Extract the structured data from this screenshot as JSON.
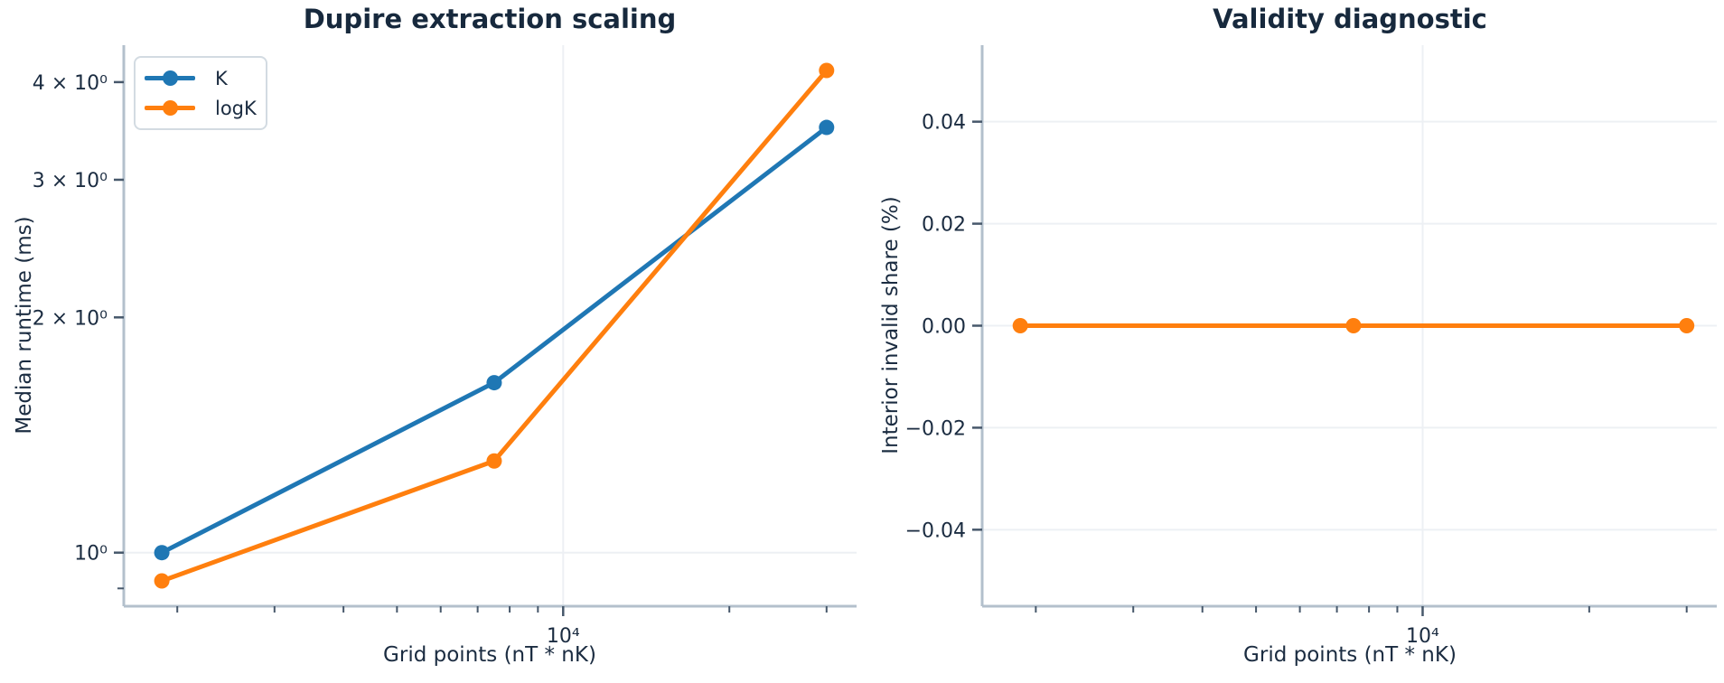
{
  "figure": {
    "background": "#ffffff",
    "text_color": "#1b2c41",
    "title_color": "#17293d",
    "grid_color": "#edf0f4",
    "spine_color": "#b3c0cc",
    "tick_color": "#47586b"
  },
  "chart_data": [
    {
      "type": "line",
      "title": "Dupire extraction scaling",
      "xlabel": "Grid points (nT * nK)",
      "ylabel": "Median runtime (ms)",
      "xscale": "log",
      "yscale": "log",
      "x": [
        1875,
        7500,
        30000
      ],
      "series": [
        {
          "name": "K",
          "color": "#1f77b4",
          "values": [
            1.0,
            1.65,
            3.5
          ]
        },
        {
          "name": "logK",
          "color": "#ff7f0e",
          "values": [
            0.92,
            1.31,
            4.14
          ]
        }
      ],
      "xlim": [
        1600,
        34000
      ],
      "ylim": [
        0.854,
        4.46
      ],
      "xticks": {
        "major": [
          {
            "value": 10000,
            "label": "10⁴"
          }
        ],
        "minor": [
          2000,
          3000,
          4000,
          5000,
          6000,
          7000,
          8000,
          9000,
          20000,
          30000
        ]
      },
      "yticks": {
        "labeled": [
          {
            "value": 1,
            "label": "10⁰"
          },
          {
            "value": 2,
            "label": "2 × 10⁰"
          },
          {
            "value": 3,
            "label": "3 × 10⁰"
          },
          {
            "value": 4,
            "label": "4 × 10⁰"
          }
        ],
        "minor": [
          0.9
        ]
      },
      "grid": {
        "x_values": [
          10000
        ],
        "y_values": [
          1
        ]
      },
      "legend": {
        "position": "upper left",
        "entries": [
          "K",
          "logK"
        ]
      }
    },
    {
      "type": "line",
      "title": "Validity diagnostic",
      "xlabel": "Grid points (nT * nK)",
      "ylabel": "Interior invalid share (%)",
      "xscale": "log",
      "yscale": "linear",
      "x": [
        1875,
        7500,
        30000
      ],
      "series": [
        {
          "name": "logK",
          "color": "#ff7f0e",
          "values": [
            0.0,
            0.0,
            0.0
          ]
        }
      ],
      "xlim": [
        1600,
        34000
      ],
      "ylim": [
        -0.055,
        0.055
      ],
      "xticks": {
        "major": [
          {
            "value": 10000,
            "label": "10⁴"
          }
        ],
        "minor": [
          2000,
          3000,
          4000,
          5000,
          6000,
          7000,
          8000,
          9000,
          20000,
          30000
        ]
      },
      "yticks": {
        "labeled": [
          {
            "value": 0.04,
            "label": "0.04"
          },
          {
            "value": 0.02,
            "label": "0.02"
          },
          {
            "value": 0.0,
            "label": "0.00"
          },
          {
            "value": -0.02,
            "label": "−0.02"
          },
          {
            "value": -0.04,
            "label": "−0.04"
          }
        ],
        "minor": []
      },
      "grid": {
        "x_values": [
          10000
        ],
        "y_values": [
          0.04,
          0.02,
          0.0,
          -0.02,
          -0.04
        ]
      },
      "legend": null
    }
  ]
}
